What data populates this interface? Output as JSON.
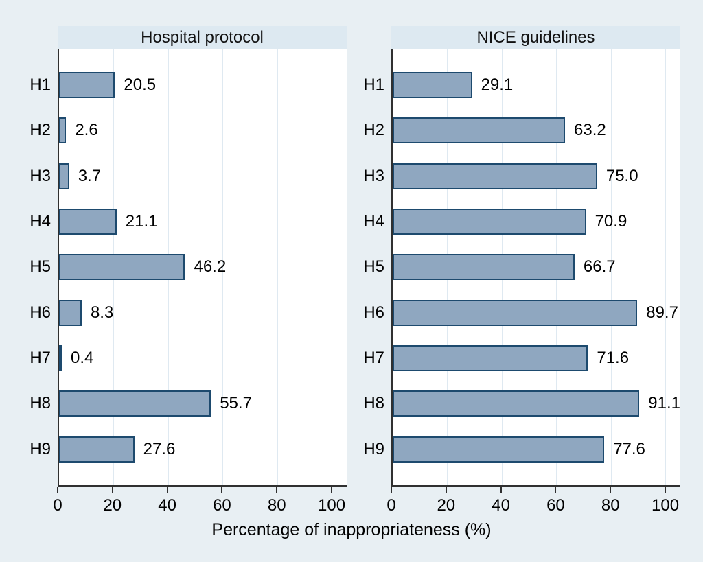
{
  "colors": {
    "page_bg": "#e8eff3",
    "band_bg": "#dde9f1",
    "plot_bg": "#ffffff",
    "grid": "#dfe9f1",
    "bar_fill": "#8fa7c0",
    "bar_border": "#1d4a6e",
    "spine": "#303030"
  },
  "chart_data": {
    "type": "bar",
    "orientation": "horizontal",
    "title": "",
    "categories": [
      "H1",
      "H2",
      "H3",
      "H4",
      "H5",
      "H6",
      "H7",
      "H8",
      "H9"
    ],
    "series": [
      {
        "name": "Hospital protocol",
        "values": [
          20.5,
          2.6,
          3.7,
          21.1,
          46.2,
          8.3,
          0.4,
          55.7,
          27.6
        ],
        "labels": [
          "20.5",
          "2.6",
          "3.7",
          "21.1",
          "46.2",
          "8.3",
          "0.4",
          "55.7",
          "27.6"
        ]
      },
      {
        "name": "NICE guidelines",
        "values": [
          29.1,
          63.2,
          75.0,
          70.9,
          66.7,
          89.7,
          71.6,
          91.1,
          77.6
        ],
        "labels": [
          "29.1",
          "63.2",
          "75.0",
          "70.9",
          "66.7",
          "89.7",
          "71.6",
          "91.1",
          "77.6"
        ]
      }
    ],
    "xlabel": "Percentage of inappropriateness (%)",
    "ylabel": "",
    "xticks": [
      0,
      20,
      40,
      60,
      80,
      100
    ],
    "xlim": [
      0,
      105.5
    ],
    "grid": true,
    "legend": "none"
  }
}
